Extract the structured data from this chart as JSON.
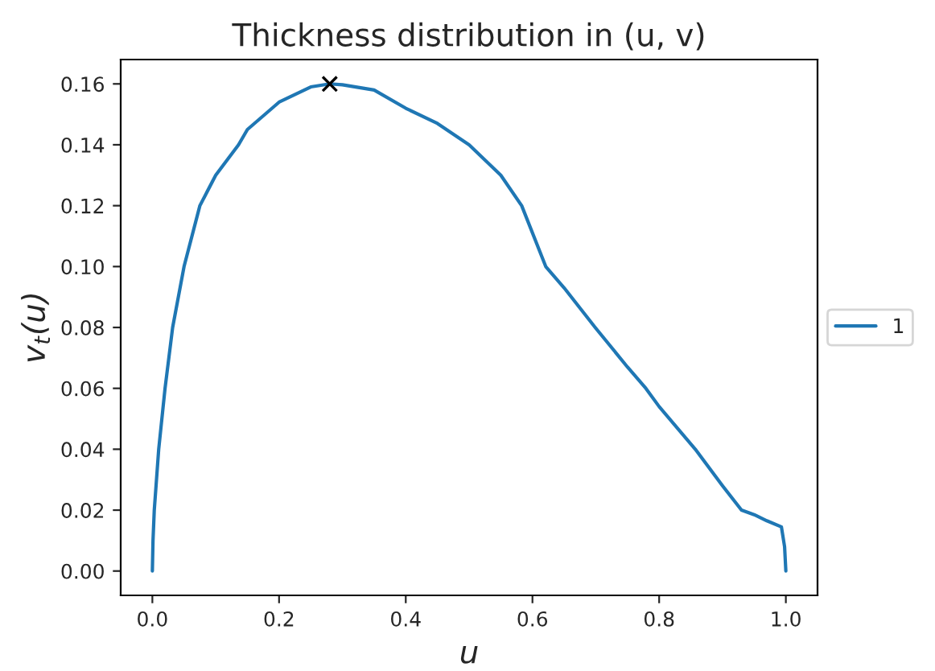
{
  "chart_data": {
    "type": "line",
    "title": "Thickness distribution in (u, v)",
    "xlabel": "u",
    "ylabel": "v$_{t}$(u)",
    "series": [
      {
        "name": "1",
        "color": "#1f77b4",
        "marker": "none",
        "x": [
          0,
          0.001,
          0.003,
          0.01,
          0.02,
          0.032,
          0.05,
          0.075,
          0.1,
          0.136,
          0.15,
          0.2,
          0.25,
          0.28,
          0.3,
          0.35,
          0.4,
          0.45,
          0.5,
          0.55,
          0.583,
          0.621,
          0.65,
          0.699,
          0.75,
          0.779,
          0.8,
          0.857,
          0.9,
          0.93,
          0.95,
          0.97,
          0.993,
          0.998,
          1.0
        ],
        "values": [
          0,
          0.01,
          0.02,
          0.04,
          0.06,
          0.08,
          0.1,
          0.12,
          0.13,
          0.14,
          0.145,
          0.154,
          0.159,
          0.16,
          0.1597,
          0.158,
          0.152,
          0.147,
          0.14,
          0.13,
          0.12,
          0.1,
          0.093,
          0.08,
          0.067,
          0.06,
          0.054,
          0.04,
          0.028,
          0.02,
          0.0185,
          0.0165,
          0.0145,
          0.008,
          0
        ]
      },
      {
        "type": "scatter",
        "color": "#000000",
        "marker": "cross",
        "x": [
          0.28
        ],
        "values": [
          0.16
        ]
      }
    ],
    "xlim": [
      -0.05,
      1.05
    ],
    "ylim": [
      -0.008,
      0.168
    ],
    "xticks": [
      {
        "value": 0,
        "label": "0.0"
      },
      0.2,
      0.4,
      0.6,
      0.8,
      {
        "value": 1,
        "label": "1.0"
      }
    ],
    "yticks": [
      {
        "value": 0,
        "label": "0.00"
      },
      {
        "value": 0.02,
        "label": "0.02"
      },
      {
        "value": 0.04,
        "label": "0.04"
      },
      {
        "value": 0.06,
        "label": "0.06"
      },
      {
        "value": 0.08,
        "label": "0.08"
      },
      {
        "value": 0.1,
        "label": "0.10"
      },
      {
        "value": 0.12,
        "label": "0.12"
      },
      {
        "value": 0.14,
        "label": "0.14"
      },
      {
        "value": 0.16,
        "label": "0.16"
      }
    ],
    "grid": false,
    "legend": "right"
  }
}
